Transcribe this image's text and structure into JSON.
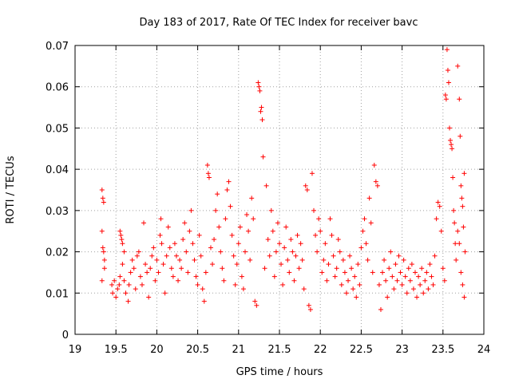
{
  "chart_data": {
    "type": "scatter",
    "title": "Day 183 of 2017, Rate Of TEC Index for receiver bavc",
    "xlabel": "GPS time / hours",
    "ylabel": "ROTI / TECUs",
    "xlim": [
      19,
      24
    ],
    "ylim": [
      0,
      0.07
    ],
    "xticks": [
      "19",
      "19.5",
      "20",
      "20.5",
      "21",
      "21.5",
      "22",
      "22.5",
      "23",
      "23.5",
      "24"
    ],
    "yticks": [
      "0",
      "0.01",
      "0.02",
      "0.03",
      "0.04",
      "0.05",
      "0.06",
      "0.07"
    ],
    "grid": true,
    "marker": "+",
    "color": "#ff0000",
    "points": [
      [
        19.33,
        0.035
      ],
      [
        19.34,
        0.033
      ],
      [
        19.35,
        0.032
      ],
      [
        19.33,
        0.025
      ],
      [
        19.34,
        0.021
      ],
      [
        19.35,
        0.02
      ],
      [
        19.36,
        0.018
      ],
      [
        19.33,
        0.013
      ],
      [
        19.36,
        0.016
      ],
      [
        19.45,
        0.012
      ],
      [
        19.46,
        0.01
      ],
      [
        19.48,
        0.013
      ],
      [
        19.5,
        0.009
      ],
      [
        19.52,
        0.011
      ],
      [
        19.54,
        0.012
      ],
      [
        19.55,
        0.014
      ],
      [
        19.55,
        0.025
      ],
      [
        19.56,
        0.024
      ],
      [
        19.57,
        0.023
      ],
      [
        19.58,
        0.022
      ],
      [
        19.6,
        0.02
      ],
      [
        19.58,
        0.017
      ],
      [
        19.6,
        0.013
      ],
      [
        19.62,
        0.01
      ],
      [
        19.65,
        0.008
      ],
      [
        19.66,
        0.012
      ],
      [
        19.68,
        0.015
      ],
      [
        19.7,
        0.018
      ],
      [
        19.72,
        0.016
      ],
      [
        19.74,
        0.011
      ],
      [
        19.76,
        0.019
      ],
      [
        19.78,
        0.02
      ],
      [
        19.8,
        0.014
      ],
      [
        19.82,
        0.012
      ],
      [
        19.84,
        0.027
      ],
      [
        19.86,
        0.017
      ],
      [
        19.88,
        0.015
      ],
      [
        19.9,
        0.009
      ],
      [
        19.92,
        0.016
      ],
      [
        19.94,
        0.019
      ],
      [
        19.96,
        0.021
      ],
      [
        19.98,
        0.013
      ],
      [
        20.0,
        0.018
      ],
      [
        20.02,
        0.015
      ],
      [
        20.04,
        0.024
      ],
      [
        20.05,
        0.028
      ],
      [
        20.06,
        0.022
      ],
      [
        20.08,
        0.017
      ],
      [
        20.1,
        0.01
      ],
      [
        20.12,
        0.019
      ],
      [
        20.14,
        0.026
      ],
      [
        20.16,
        0.021
      ],
      [
        20.18,
        0.016
      ],
      [
        20.2,
        0.014
      ],
      [
        20.22,
        0.022
      ],
      [
        20.24,
        0.019
      ],
      [
        20.26,
        0.013
      ],
      [
        20.28,
        0.018
      ],
      [
        20.3,
        0.016
      ],
      [
        20.32,
        0.023
      ],
      [
        20.34,
        0.027
      ],
      [
        20.36,
        0.02
      ],
      [
        20.38,
        0.015
      ],
      [
        20.4,
        0.025
      ],
      [
        20.42,
        0.03
      ],
      [
        20.44,
        0.022
      ],
      [
        20.46,
        0.018
      ],
      [
        20.48,
        0.014
      ],
      [
        20.5,
        0.012
      ],
      [
        20.52,
        0.024
      ],
      [
        20.54,
        0.019
      ],
      [
        20.56,
        0.011
      ],
      [
        20.58,
        0.008
      ],
      [
        20.6,
        0.015
      ],
      [
        20.62,
        0.041
      ],
      [
        20.63,
        0.039
      ],
      [
        20.64,
        0.038
      ],
      [
        20.66,
        0.021
      ],
      [
        20.68,
        0.017
      ],
      [
        20.7,
        0.023
      ],
      [
        20.72,
        0.03
      ],
      [
        20.74,
        0.034
      ],
      [
        20.76,
        0.026
      ],
      [
        20.78,
        0.02
      ],
      [
        20.8,
        0.016
      ],
      [
        20.82,
        0.013
      ],
      [
        20.84,
        0.028
      ],
      [
        20.86,
        0.035
      ],
      [
        20.88,
        0.037
      ],
      [
        20.9,
        0.031
      ],
      [
        20.92,
        0.024
      ],
      [
        20.94,
        0.019
      ],
      [
        20.96,
        0.012
      ],
      [
        20.98,
        0.017
      ],
      [
        21.0,
        0.022
      ],
      [
        21.02,
        0.026
      ],
      [
        21.04,
        0.014
      ],
      [
        21.06,
        0.011
      ],
      [
        21.08,
        0.02
      ],
      [
        21.1,
        0.029
      ],
      [
        21.12,
        0.025
      ],
      [
        21.14,
        0.018
      ],
      [
        21.16,
        0.033
      ],
      [
        21.18,
        0.028
      ],
      [
        21.2,
        0.008
      ],
      [
        21.22,
        0.007
      ],
      [
        21.24,
        0.061
      ],
      [
        21.25,
        0.06
      ],
      [
        21.26,
        0.059
      ],
      [
        21.27,
        0.054
      ],
      [
        21.28,
        0.055
      ],
      [
        21.29,
        0.052
      ],
      [
        21.3,
        0.043
      ],
      [
        21.32,
        0.016
      ],
      [
        21.34,
        0.036
      ],
      [
        21.36,
        0.023
      ],
      [
        21.38,
        0.019
      ],
      [
        21.4,
        0.03
      ],
      [
        21.42,
        0.025
      ],
      [
        21.44,
        0.014
      ],
      [
        21.46,
        0.02
      ],
      [
        21.48,
        0.027
      ],
      [
        21.5,
        0.022
      ],
      [
        21.52,
        0.017
      ],
      [
        21.54,
        0.012
      ],
      [
        21.56,
        0.021
      ],
      [
        21.58,
        0.026
      ],
      [
        21.6,
        0.018
      ],
      [
        21.62,
        0.015
      ],
      [
        21.64,
        0.023
      ],
      [
        21.66,
        0.02
      ],
      [
        21.68,
        0.013
      ],
      [
        21.7,
        0.019
      ],
      [
        21.72,
        0.024
      ],
      [
        21.74,
        0.016
      ],
      [
        21.76,
        0.022
      ],
      [
        21.78,
        0.018
      ],
      [
        21.8,
        0.011
      ],
      [
        21.82,
        0.036
      ],
      [
        21.84,
        0.035
      ],
      [
        21.86,
        0.007
      ],
      [
        21.88,
        0.006
      ],
      [
        21.9,
        0.039
      ],
      [
        21.92,
        0.03
      ],
      [
        21.94,
        0.024
      ],
      [
        21.96,
        0.02
      ],
      [
        21.98,
        0.028
      ],
      [
        22.0,
        0.025
      ],
      [
        22.02,
        0.015
      ],
      [
        22.04,
        0.018
      ],
      [
        22.06,
        0.022
      ],
      [
        22.08,
        0.013
      ],
      [
        22.1,
        0.017
      ],
      [
        22.12,
        0.028
      ],
      [
        22.14,
        0.024
      ],
      [
        22.16,
        0.019
      ],
      [
        22.18,
        0.014
      ],
      [
        22.2,
        0.016
      ],
      [
        22.22,
        0.023
      ],
      [
        22.24,
        0.02
      ],
      [
        22.26,
        0.012
      ],
      [
        22.28,
        0.018
      ],
      [
        22.3,
        0.015
      ],
      [
        22.32,
        0.01
      ],
      [
        22.34,
        0.013
      ],
      [
        22.36,
        0.019
      ],
      [
        22.38,
        0.016
      ],
      [
        22.4,
        0.011
      ],
      [
        22.42,
        0.014
      ],
      [
        22.44,
        0.009
      ],
      [
        22.46,
        0.017
      ],
      [
        22.48,
        0.012
      ],
      [
        22.5,
        0.021
      ],
      [
        22.52,
        0.025
      ],
      [
        22.54,
        0.028
      ],
      [
        22.56,
        0.022
      ],
      [
        22.58,
        0.018
      ],
      [
        22.6,
        0.033
      ],
      [
        22.62,
        0.027
      ],
      [
        22.64,
        0.015
      ],
      [
        22.66,
        0.041
      ],
      [
        22.68,
        0.037
      ],
      [
        22.7,
        0.036
      ],
      [
        22.72,
        0.012
      ],
      [
        22.74,
        0.006
      ],
      [
        22.76,
        0.015
      ],
      [
        22.78,
        0.018
      ],
      [
        22.8,
        0.013
      ],
      [
        22.82,
        0.009
      ],
      [
        22.84,
        0.016
      ],
      [
        22.86,
        0.02
      ],
      [
        22.88,
        0.014
      ],
      [
        22.9,
        0.011
      ],
      [
        22.92,
        0.017
      ],
      [
        22.94,
        0.013
      ],
      [
        22.96,
        0.019
      ],
      [
        22.98,
        0.015
      ],
      [
        23.0,
        0.012
      ],
      [
        23.02,
        0.018
      ],
      [
        23.04,
        0.014
      ],
      [
        23.06,
        0.01
      ],
      [
        23.08,
        0.016
      ],
      [
        23.1,
        0.013
      ],
      [
        23.12,
        0.017
      ],
      [
        23.14,
        0.011
      ],
      [
        23.16,
        0.015
      ],
      [
        23.18,
        0.009
      ],
      [
        23.2,
        0.014
      ],
      [
        23.22,
        0.012
      ],
      [
        23.24,
        0.016
      ],
      [
        23.26,
        0.01
      ],
      [
        23.28,
        0.013
      ],
      [
        23.3,
        0.015
      ],
      [
        23.32,
        0.011
      ],
      [
        23.34,
        0.017
      ],
      [
        23.36,
        0.014
      ],
      [
        23.38,
        0.012
      ],
      [
        23.4,
        0.019
      ],
      [
        23.42,
        0.028
      ],
      [
        23.44,
        0.032
      ],
      [
        23.46,
        0.031
      ],
      [
        23.48,
        0.025
      ],
      [
        23.5,
        0.016
      ],
      [
        23.52,
        0.013
      ],
      [
        23.53,
        0.058
      ],
      [
        23.54,
        0.057
      ],
      [
        23.55,
        0.069
      ],
      [
        23.56,
        0.064
      ],
      [
        23.57,
        0.061
      ],
      [
        23.58,
        0.05
      ],
      [
        23.59,
        0.047
      ],
      [
        23.6,
        0.046
      ],
      [
        23.61,
        0.045
      ],
      [
        23.62,
        0.038
      ],
      [
        23.63,
        0.03
      ],
      [
        23.64,
        0.027
      ],
      [
        23.65,
        0.022
      ],
      [
        23.66,
        0.018
      ],
      [
        23.68,
        0.065
      ],
      [
        23.7,
        0.057
      ],
      [
        23.71,
        0.048
      ],
      [
        23.72,
        0.036
      ],
      [
        23.73,
        0.033
      ],
      [
        23.74,
        0.031
      ],
      [
        23.75,
        0.026
      ],
      [
        23.76,
        0.039
      ],
      [
        23.77,
        0.02
      ],
      [
        23.74,
        0.012
      ],
      [
        23.76,
        0.009
      ],
      [
        23.72,
        0.015
      ],
      [
        23.7,
        0.022
      ],
      [
        23.68,
        0.025
      ]
    ]
  }
}
